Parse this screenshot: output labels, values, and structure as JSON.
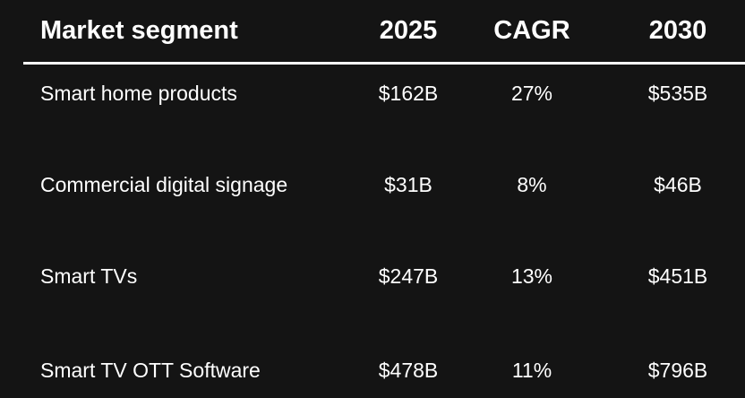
{
  "table": {
    "headers": [
      "Market segment",
      "2025",
      "CAGR",
      "2030"
    ],
    "rows": [
      [
        "Smart home products",
        "$162B",
        "27%",
        "$535B"
      ],
      [
        "Commercial digital signage",
        "$31B",
        "8%",
        "$46B"
      ],
      [
        "Smart TVs",
        "$247B",
        "13%",
        "$451B"
      ],
      [
        "Smart TV OTT Software",
        "$478B",
        "11%",
        "$796B"
      ]
    ]
  },
  "colors": {
    "background": "#141414",
    "text": "#ffffff",
    "rule": "#ffffff"
  }
}
